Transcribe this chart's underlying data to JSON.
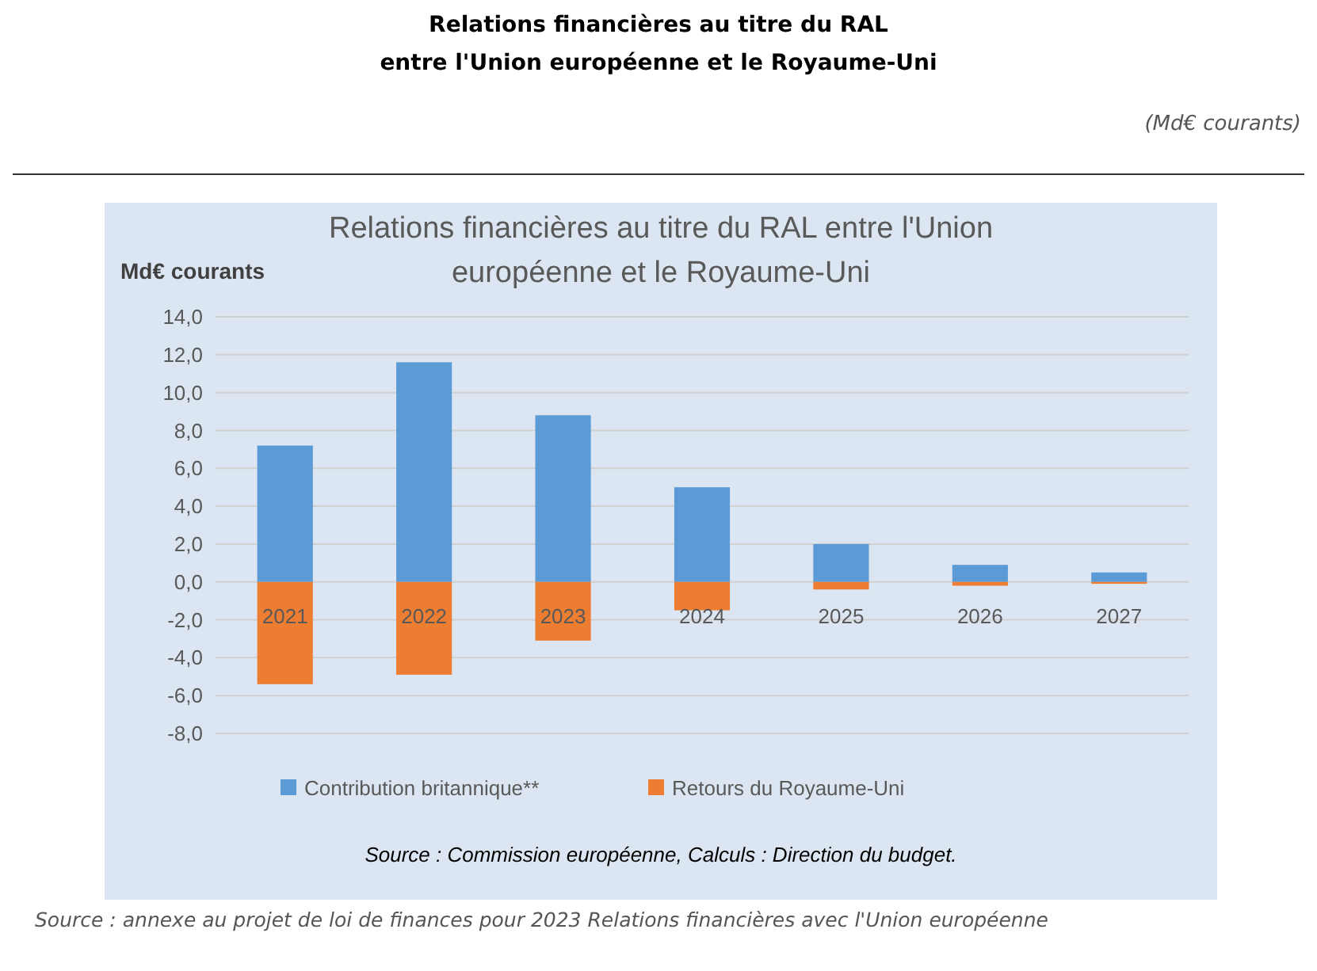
{
  "chart_data": {
    "type": "bar",
    "title": "Relations financières au titre du RAL\nentre l'Union européenne et le Royaume-Uni",
    "subtitle": "Relations financières au titre du RAL entre l'Union\neuropéenne et le Royaume-Uni",
    "ylabel": "Md€ courants",
    "annotations": [
      "(Md€ courants)",
      "Source : Commission européenne, Calculs : Direction du budget.",
      "Source : annexe au projet de loi de finances pour 2023 Relations financières avec l'Union européenne"
    ],
    "categories": [
      "2021",
      "2022",
      "2023",
      "2024",
      "2025",
      "2026",
      "2027"
    ],
    "series": [
      {
        "name": "Contribution britannique**",
        "color": "#5b9bd5",
        "values": [
          7.2,
          11.6,
          8.8,
          5.0,
          2.0,
          0.9,
          0.5
        ]
      },
      {
        "name": "Retours du Royaume-Uni",
        "color": "#ed7d31",
        "values": [
          -5.4,
          -4.9,
          -3.1,
          -1.5,
          -0.4,
          -0.2,
          -0.1
        ]
      }
    ],
    "stacked": true,
    "ylim": [
      -8,
      14
    ],
    "yticks": [
      {
        "value": -8,
        "label": "-8,0"
      },
      {
        "value": -6,
        "label": "-6,0"
      },
      {
        "value": -4,
        "label": "-4,0"
      },
      {
        "value": -2,
        "label": "-2,0"
      },
      {
        "value": 0,
        "label": "0,0"
      },
      {
        "value": 2,
        "label": "2,0"
      },
      {
        "value": 4,
        "label": "4,0"
      },
      {
        "value": 6,
        "label": "6,0"
      },
      {
        "value": 8,
        "label": "8,0"
      },
      {
        "value": 10,
        "label": "10,0"
      },
      {
        "value": 12,
        "label": "12,0"
      },
      {
        "value": 14,
        "label": "14,0"
      }
    ],
    "grid": "y",
    "legend": "bottom"
  }
}
